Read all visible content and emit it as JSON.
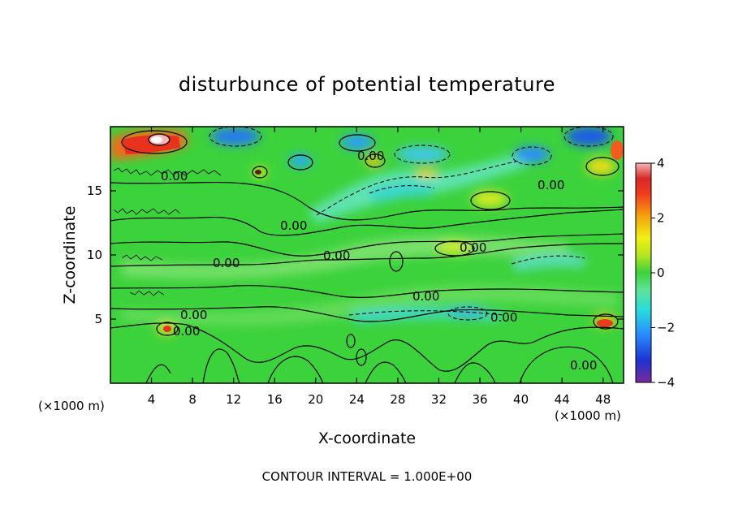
{
  "chart_data": {
    "type": "heatmap",
    "title": "disturbunce of potential temperature",
    "xlabel": "X-coordinate",
    "ylabel": "Z-coordinate",
    "x_unit": "(×1000 m)",
    "z_unit": "(×1000 m)",
    "xlim": [
      0,
      50
    ],
    "ylim": [
      0,
      20
    ],
    "x_ticks": [
      4,
      8,
      12,
      16,
      20,
      24,
      28,
      32,
      36,
      40,
      44,
      48
    ],
    "y_ticks": [
      5,
      10,
      15
    ],
    "colorbar": {
      "range": [
        -4,
        4
      ],
      "ticks": [
        4,
        2,
        0,
        -2,
        -4
      ],
      "colors": [
        "#7a2a9a",
        "#1e32d2",
        "#2a8cff",
        "#28dcdc",
        "#5fe39a",
        "#3cd23c",
        "#b4e61e",
        "#f0f014",
        "#f5a00f",
        "#f03c1e",
        "#d72828",
        "#f7b6b6"
      ]
    },
    "contour_label": "0.00",
    "contour_interval": "CONTOUR INTERVAL = 1.000E+00",
    "grid": false
  }
}
